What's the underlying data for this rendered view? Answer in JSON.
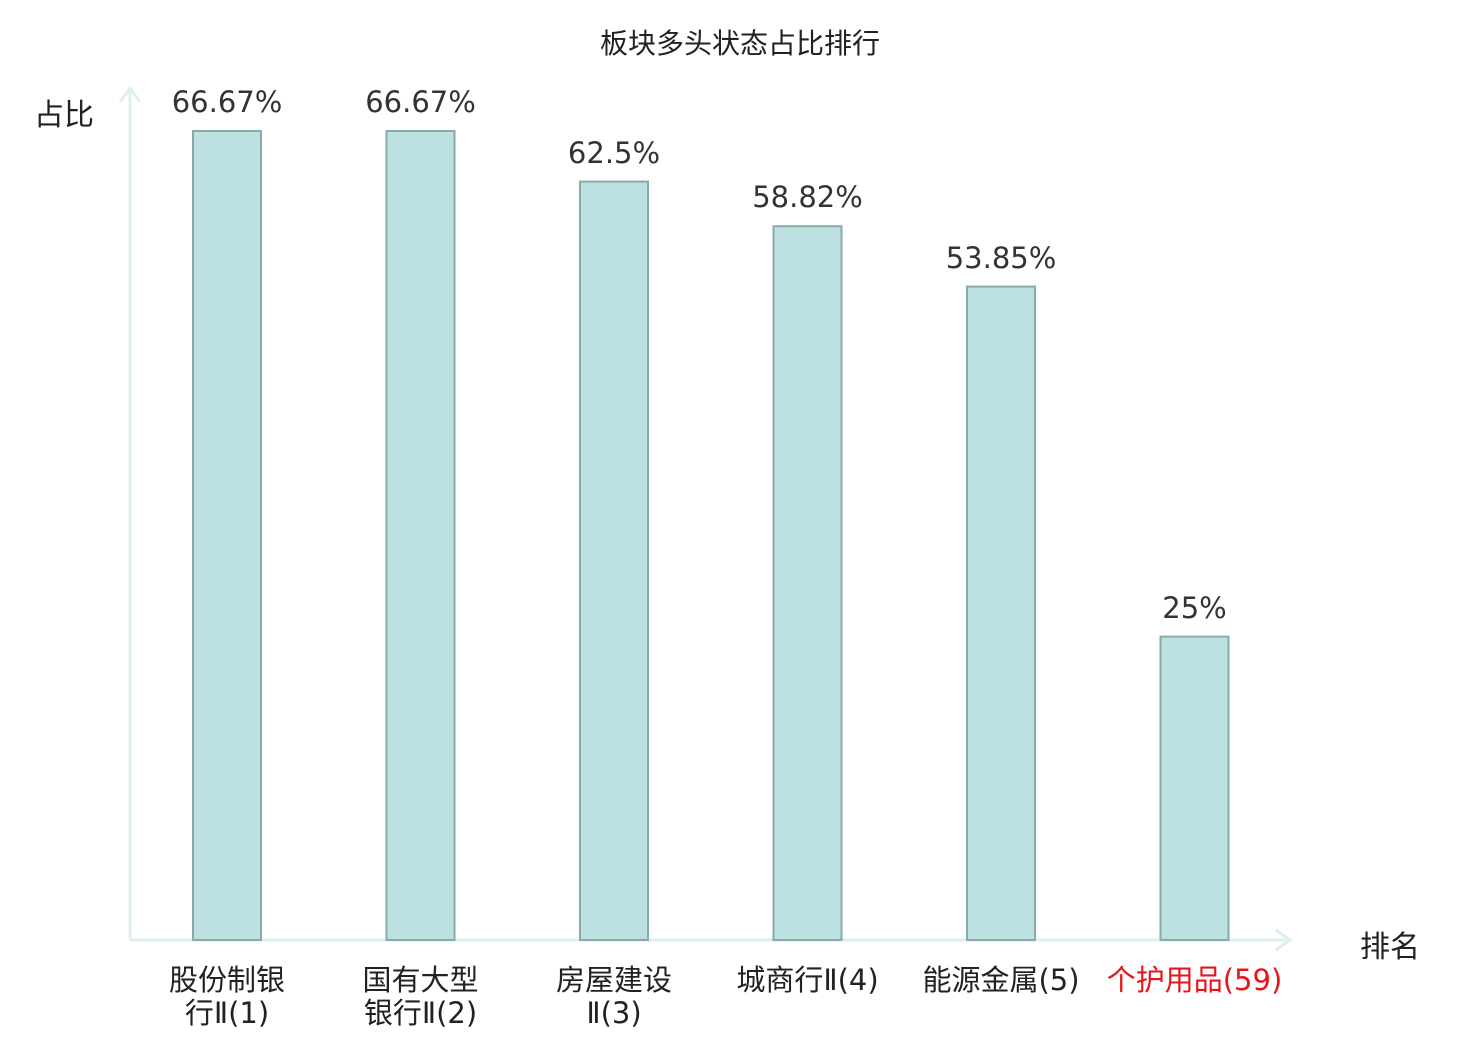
{
  "chart_data": {
    "type": "bar",
    "title": "板块多头状态占比排行",
    "ylabel": "占比",
    "xlabel": "排名",
    "ylim": [
      0,
      70
    ],
    "categories": [
      {
        "line1": "股份制银",
        "line2": "行Ⅱ(1)"
      },
      {
        "line1": "国有大型",
        "line2": "银行Ⅱ(2)"
      },
      {
        "line1": "房屋建设",
        "line2": "Ⅱ(3)"
      },
      {
        "line1": "城商行Ⅱ(4)",
        "line2": ""
      },
      {
        "line1": "能源金属(5)",
        "line2": ""
      },
      {
        "line1": "个护用品(59)",
        "line2": "",
        "highlight": true
      }
    ],
    "values": [
      66.67,
      66.67,
      62.5,
      58.82,
      53.85,
      25
    ],
    "value_labels": [
      "66.67%",
      "66.67%",
      "62.5%",
      "58.82%",
      "53.85%",
      "25%"
    ],
    "grid": false,
    "colors": {
      "bar_fill": "#bde0e2",
      "bar_stroke": "#8aaaa9",
      "axis": "#dff0ec",
      "highlight_text": "#e8141c"
    }
  }
}
